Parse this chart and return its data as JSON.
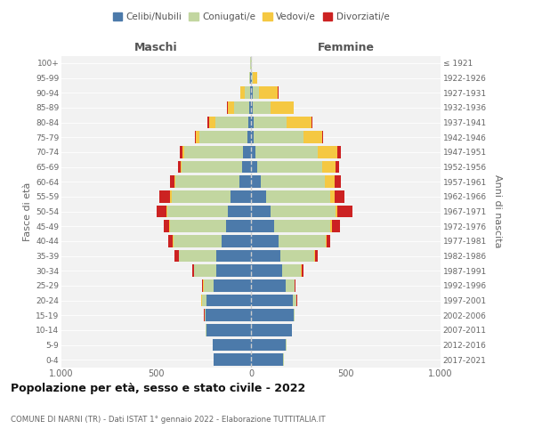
{
  "age_groups": [
    "0-4",
    "5-9",
    "10-14",
    "15-19",
    "20-24",
    "25-29",
    "30-34",
    "35-39",
    "40-44",
    "45-49",
    "50-54",
    "55-59",
    "60-64",
    "65-69",
    "70-74",
    "75-79",
    "80-84",
    "85-89",
    "90-94",
    "95-99",
    "100+"
  ],
  "birth_years": [
    "2017-2021",
    "2012-2016",
    "2007-2011",
    "2002-2006",
    "1997-2001",
    "1992-1996",
    "1987-1991",
    "1982-1986",
    "1977-1981",
    "1972-1976",
    "1967-1971",
    "1962-1966",
    "1957-1961",
    "1952-1956",
    "1947-1951",
    "1942-1946",
    "1937-1941",
    "1932-1936",
    "1927-1931",
    "1922-1926",
    "≤ 1921"
  ],
  "males_celibi": [
    195,
    200,
    235,
    240,
    235,
    195,
    185,
    185,
    155,
    130,
    120,
    110,
    60,
    45,
    40,
    20,
    15,
    10,
    5,
    3,
    2
  ],
  "males_coniugati": [
    2,
    2,
    3,
    5,
    25,
    55,
    115,
    195,
    255,
    295,
    320,
    310,
    340,
    320,
    310,
    250,
    175,
    80,
    30,
    5,
    2
  ],
  "males_vedovi": [
    0,
    0,
    0,
    0,
    1,
    2,
    2,
    2,
    3,
    5,
    5,
    5,
    5,
    5,
    10,
    20,
    30,
    30,
    20,
    2,
    0
  ],
  "males_divorziati": [
    0,
    0,
    0,
    2,
    3,
    5,
    8,
    20,
    25,
    30,
    55,
    60,
    20,
    15,
    15,
    5,
    10,
    5,
    2,
    0,
    0
  ],
  "females_nubili": [
    170,
    185,
    215,
    225,
    220,
    185,
    165,
    155,
    145,
    120,
    105,
    80,
    50,
    35,
    25,
    15,
    15,
    10,
    8,
    3,
    2
  ],
  "females_coniugate": [
    2,
    2,
    3,
    5,
    20,
    45,
    100,
    180,
    250,
    300,
    340,
    340,
    340,
    340,
    325,
    260,
    175,
    95,
    35,
    8,
    2
  ],
  "females_vedove": [
    0,
    0,
    0,
    0,
    1,
    2,
    2,
    3,
    5,
    8,
    10,
    20,
    50,
    70,
    105,
    100,
    130,
    120,
    100,
    20,
    3
  ],
  "females_divorziate": [
    0,
    0,
    0,
    1,
    3,
    3,
    8,
    15,
    20,
    40,
    80,
    55,
    35,
    20,
    20,
    5,
    5,
    2,
    2,
    0,
    0
  ],
  "color_celibi": "#4c7aaa",
  "color_coniugati": "#c2d6a0",
  "color_vedovi": "#f5c842",
  "color_divorziati": "#cc2222",
  "legend_labels": [
    "Celibi/Nubili",
    "Coniugati/e",
    "Vedovi/e",
    "Divorziati/e"
  ],
  "title": "Popolazione per età, sesso e stato civile - 2022",
  "subtitle": "COMUNE DI NARNI (TR) - Dati ISTAT 1° gennaio 2022 - Elaborazione TUTTITALIA.IT",
  "label_maschi": "Maschi",
  "label_femmine": "Femmine",
  "label_fasce": "Fasce di età",
  "label_anni": "Anni di nascita",
  "xlim": 1000,
  "bg_color": "#f2f2f2"
}
